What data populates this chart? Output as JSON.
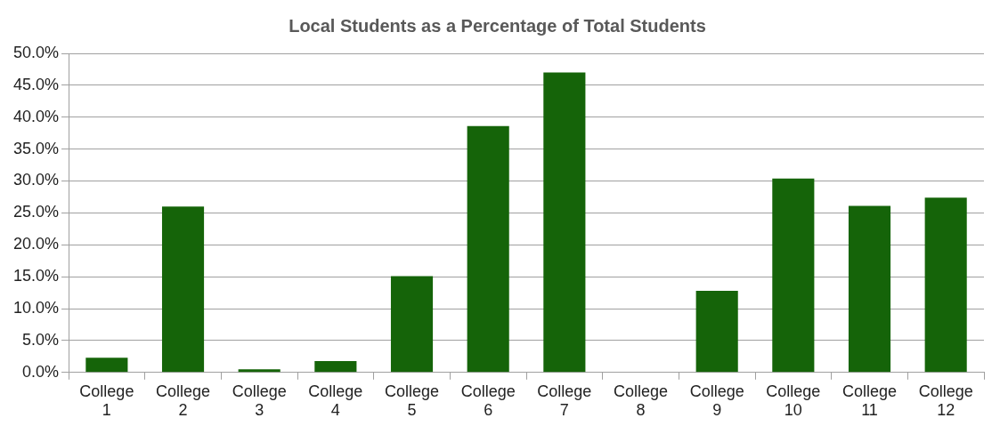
{
  "chart_data": {
    "type": "bar",
    "title": "Local Students as a Percentage of Total Students",
    "categories": [
      "College 1",
      "College 2",
      "College 3",
      "College 4",
      "College 5",
      "College 6",
      "College 7",
      "College 8",
      "College 9",
      "College 10",
      "College 11",
      "College 12"
    ],
    "values": [
      2.3,
      26.0,
      0.5,
      1.8,
      15.1,
      38.6,
      47.0,
      0,
      12.8,
      30.4,
      26.1,
      27.4
    ],
    "color": "#156409",
    "ylim": [
      0,
      50
    ],
    "yticks": [
      {
        "value": 0,
        "label": "0.0%"
      },
      {
        "value": 5,
        "label": "5.0%"
      },
      {
        "value": 10,
        "label": "10.0%"
      },
      {
        "value": 15,
        "label": "15.0%"
      },
      {
        "value": 20,
        "label": "20.0%"
      },
      {
        "value": 25,
        "label": "25.0%"
      },
      {
        "value": 30,
        "label": "30.0%"
      },
      {
        "value": 35,
        "label": "35.0%"
      },
      {
        "value": 40,
        "label": "40.0%"
      },
      {
        "value": 45,
        "label": "45.0%"
      },
      {
        "value": 50,
        "label": "50.0%"
      }
    ],
    "grid": "y"
  }
}
